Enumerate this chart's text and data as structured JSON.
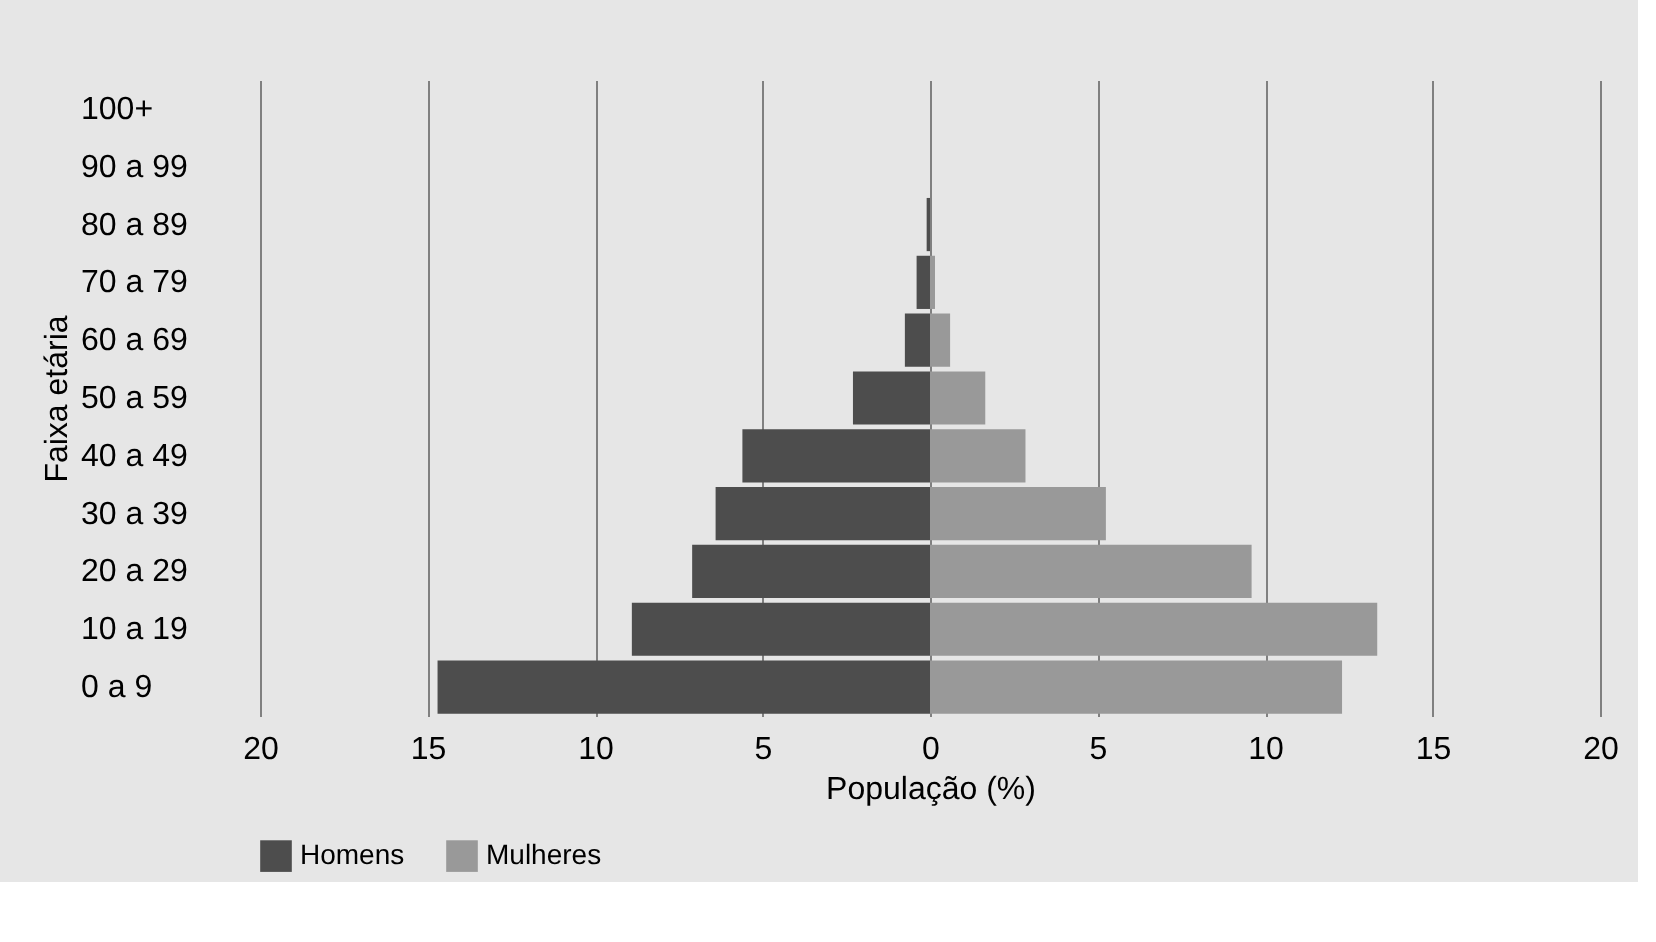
{
  "chart_data": {
    "type": "bar",
    "orientation": "horizontal",
    "xlabel": "População (%)",
    "ylabel": "Faixa etária",
    "categories": [
      "100+",
      "90 a 99",
      "80 a 89",
      "70 a 79",
      "60 a 69",
      "50 a 59",
      "40 a 49",
      "30 a 39",
      "20 a 29",
      "10 a 19",
      "0 a 9"
    ],
    "series": [
      {
        "name": "Homens",
        "color": "#4d4d4d",
        "values": [
          0,
          0,
          -0.1,
          -0.4,
          -0.75,
          -2.3,
          -5.6,
          -6.4,
          -7.1,
          -8.9,
          -14.7
        ]
      },
      {
        "name": "Mulheres",
        "color": "#999999",
        "values": [
          0,
          0,
          0,
          0.15,
          0.6,
          1.65,
          2.85,
          5.25,
          9.6,
          13.35,
          12.3
        ]
      }
    ],
    "xlim": [
      -20,
      20
    ],
    "xticks": [
      {
        "value": -20,
        "label": "20"
      },
      {
        "value": -15,
        "label": "15"
      },
      {
        "value": -10,
        "label": "10"
      },
      {
        "value": -5,
        "label": "5"
      },
      0,
      5,
      10,
      15,
      20
    ],
    "stacked": true,
    "grid": "x",
    "legend": "bottom"
  }
}
